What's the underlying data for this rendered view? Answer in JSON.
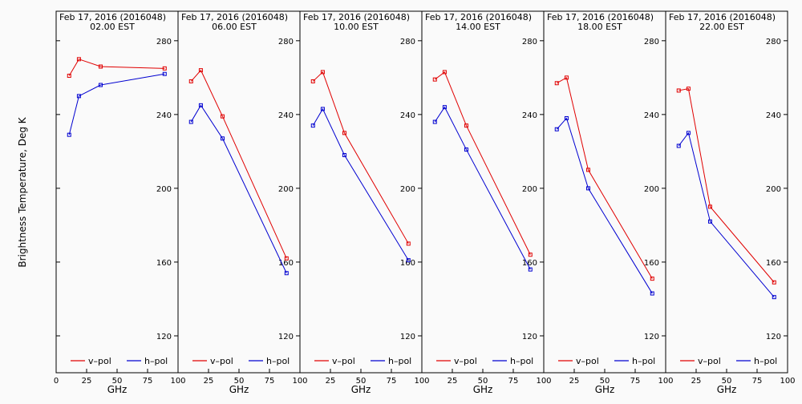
{
  "chart_data": {
    "type": "line",
    "ylabel": "Brightness Temperature, Deg K",
    "xlabel": "GHz",
    "x_ticks": [
      0,
      25,
      50,
      75,
      100
    ],
    "y_ticks": [
      120,
      160,
      200,
      240,
      280
    ],
    "xlim": [
      0,
      100
    ],
    "ylim": [
      100,
      296
    ],
    "legend": [
      {
        "label": "v–pol",
        "color": "#e00000"
      },
      {
        "label": "h–pol",
        "color": "#0000d0"
      }
    ],
    "legend_position": "bottom",
    "grid": false,
    "panels": [
      {
        "title": "Feb 17, 2016 (2016048)",
        "time": "02.00 EST",
        "series": [
          {
            "name": "v–pol",
            "x": [
              10.7,
              18.7,
              36.5,
              89
            ],
            "y": [
              261,
              270,
              266,
              265
            ]
          },
          {
            "name": "h–pol",
            "x": [
              10.7,
              18.7,
              36.5,
              89
            ],
            "y": [
              229,
              250,
              256,
              262
            ]
          }
        ]
      },
      {
        "title": "Feb 17, 2016 (2016048)",
        "time": "06.00 EST",
        "series": [
          {
            "name": "v–pol",
            "x": [
              10.7,
              18.7,
              36.5,
              89
            ],
            "y": [
              258,
              264,
              239,
              162
            ]
          },
          {
            "name": "h–pol",
            "x": [
              10.7,
              18.7,
              36.5,
              89
            ],
            "y": [
              236,
              245,
              227,
              154
            ]
          }
        ]
      },
      {
        "title": "Feb 17, 2016 (2016048)",
        "time": "10.00 EST",
        "series": [
          {
            "name": "v–pol",
            "x": [
              10.7,
              18.7,
              36.5,
              89
            ],
            "y": [
              258,
              263,
              230,
              170
            ]
          },
          {
            "name": "h–pol",
            "x": [
              10.7,
              18.7,
              36.5,
              89
            ],
            "y": [
              234,
              243,
              218,
              161
            ]
          }
        ]
      },
      {
        "title": "Feb 17, 2016 (2016048)",
        "time": "14.00 EST",
        "series": [
          {
            "name": "v–pol",
            "x": [
              10.7,
              18.7,
              36.5,
              89
            ],
            "y": [
              259,
              263,
              234,
              164
            ]
          },
          {
            "name": "h–pol",
            "x": [
              10.7,
              18.7,
              36.5,
              89
            ],
            "y": [
              236,
              244,
              221,
              156
            ]
          }
        ]
      },
      {
        "title": "Feb 17, 2016 (2016048)",
        "time": "18.00 EST",
        "series": [
          {
            "name": "v–pol",
            "x": [
              10.7,
              18.7,
              36.5,
              89
            ],
            "y": [
              257,
              260,
              210,
              151
            ]
          },
          {
            "name": "h–pol",
            "x": [
              10.7,
              18.7,
              36.5,
              89
            ],
            "y": [
              232,
              238,
              200,
              143
            ]
          }
        ]
      },
      {
        "title": "Feb 17, 2016 (2016048)",
        "time": "22.00 EST",
        "series": [
          {
            "name": "v–pol",
            "x": [
              10.7,
              18.7,
              36.5,
              89
            ],
            "y": [
              253,
              254,
              190,
              149
            ]
          },
          {
            "name": "h–pol",
            "x": [
              10.7,
              18.7,
              36.5,
              89
            ],
            "y": [
              223,
              230,
              182,
              141
            ]
          }
        ]
      }
    ]
  }
}
